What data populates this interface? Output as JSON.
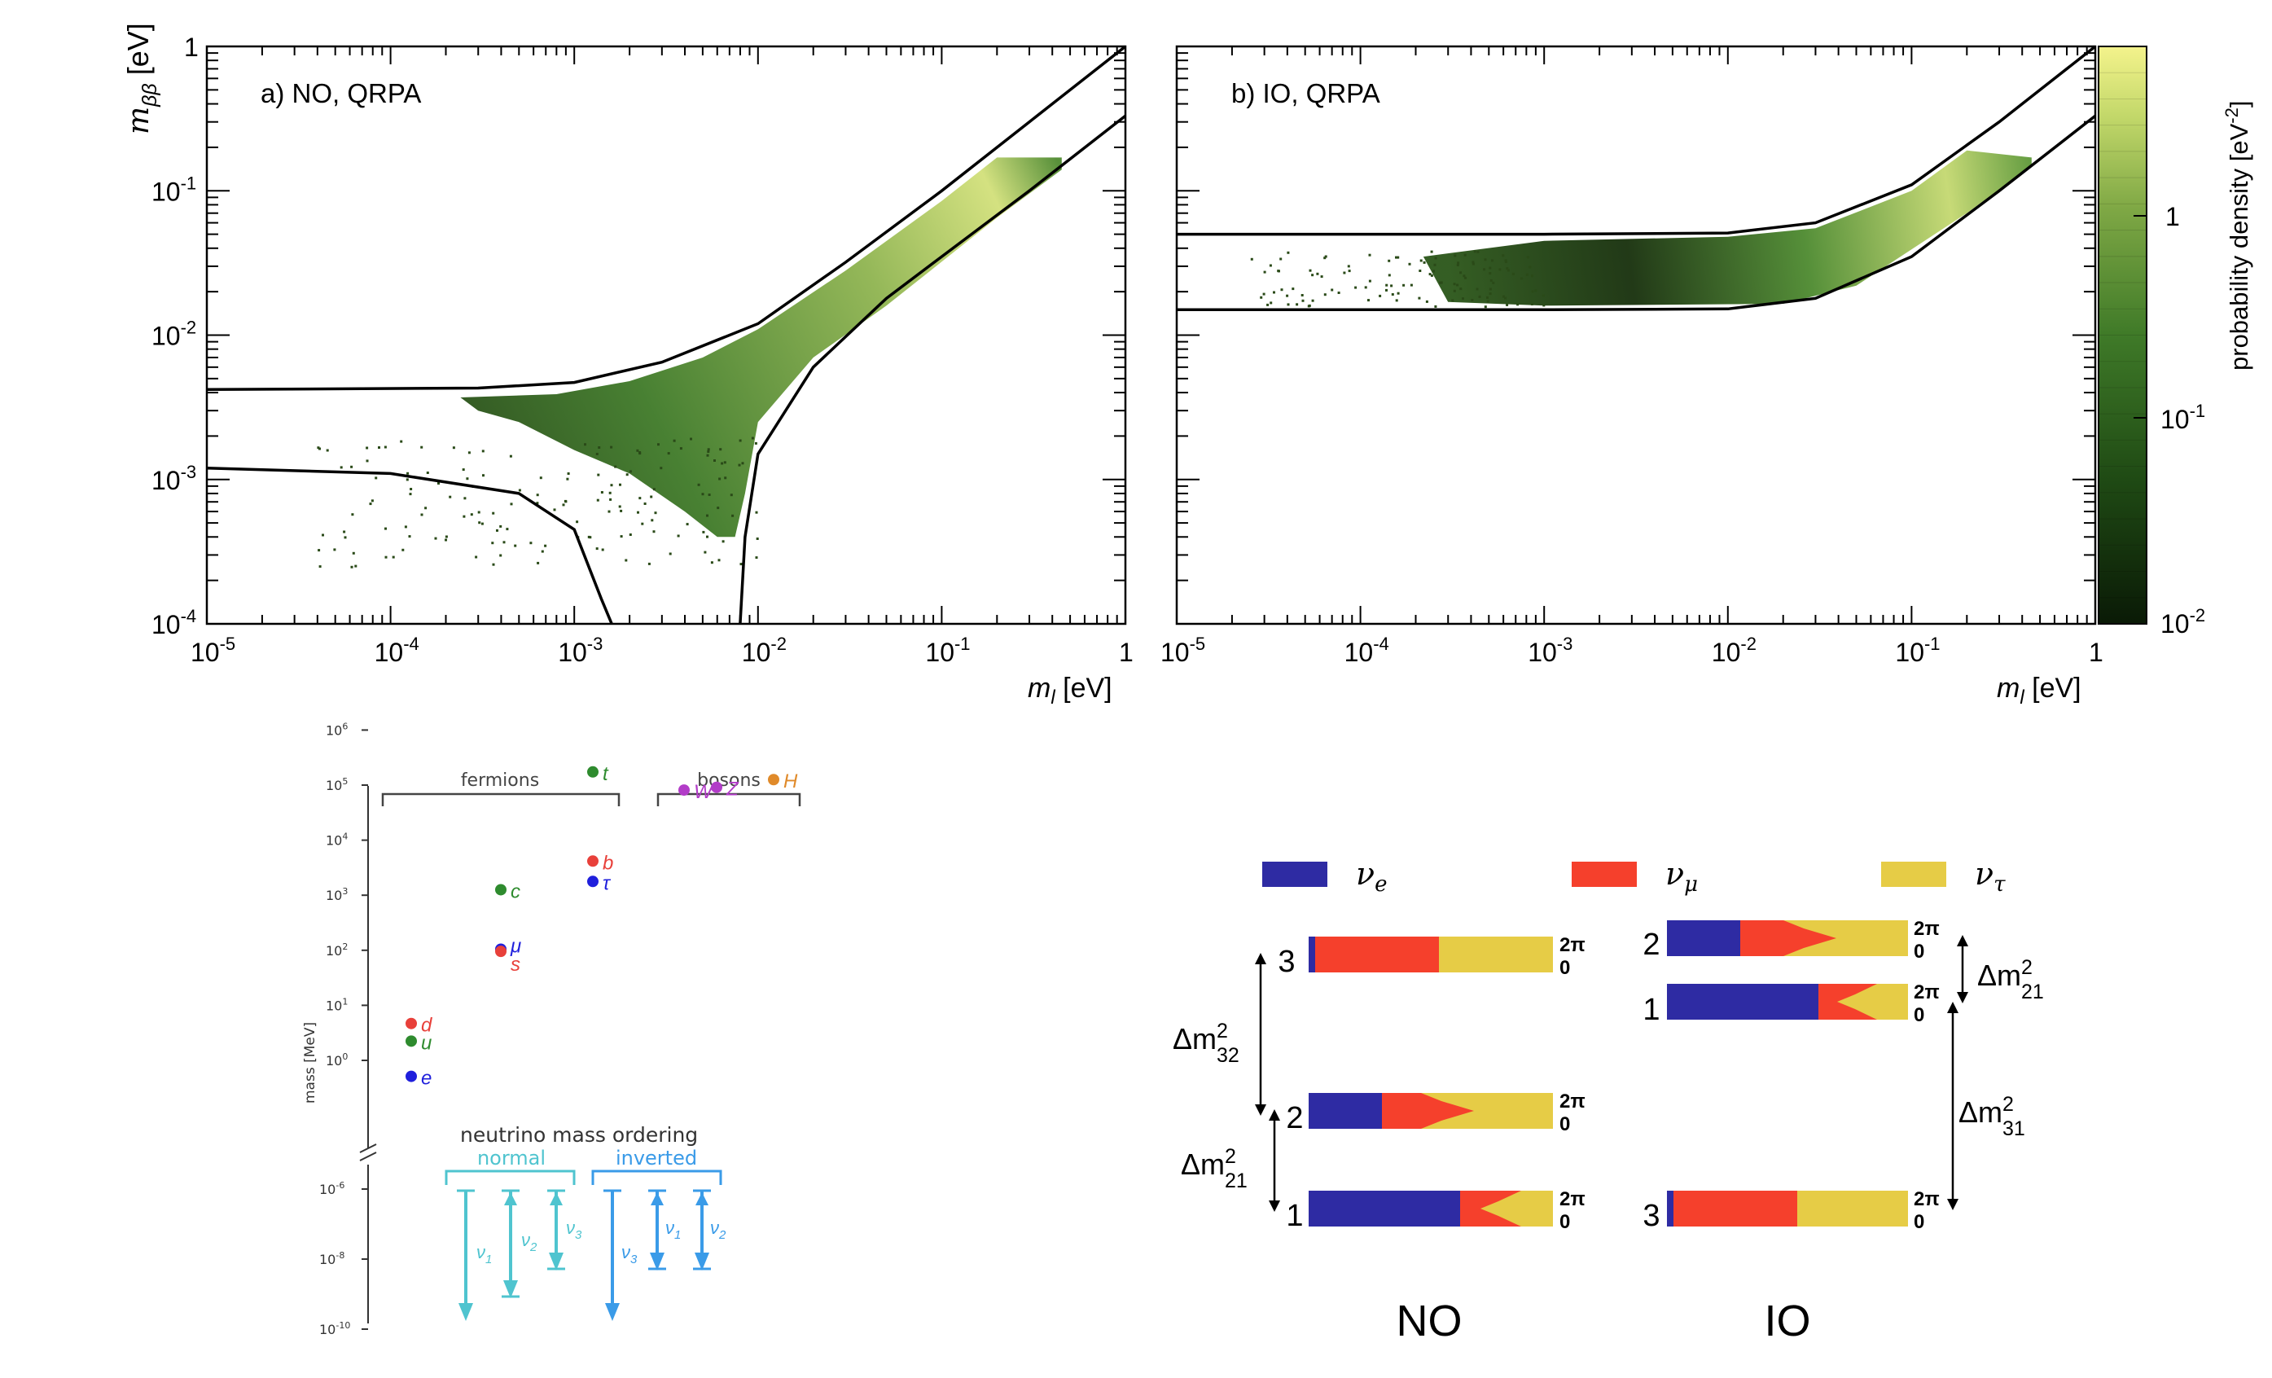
{
  "panel_a": {
    "label": "a) NO, QRPA",
    "ylabel": "m",
    "ylabel_sub": "ββ",
    "ylabel_unit": " [eV]",
    "xlabel": "m",
    "xlabel_sub": "l",
    "xlabel_unit": " [eV]"
  },
  "panel_b": {
    "label": "b) IO, QRPA",
    "xlabel": "m",
    "xlabel_sub": "l",
    "xlabel_unit": " [eV]"
  },
  "colorbar": {
    "label": "probability density [eV",
    "label_sup": "-2",
    "label_end": "]",
    "ticks": [
      "1",
      "10",
      "10"
    ],
    "tick_sups": [
      "",
      "-1",
      "-2"
    ]
  },
  "ticks": {
    "y": [
      {
        "base": "1",
        "sup": ""
      },
      {
        "base": "10",
        "sup": "-1"
      },
      {
        "base": "10",
        "sup": "-2"
      },
      {
        "base": "10",
        "sup": "-3"
      },
      {
        "base": "10",
        "sup": "-4"
      }
    ],
    "x_a": [
      {
        "base": "10",
        "sup": "-5"
      },
      {
        "base": "10",
        "sup": "-4"
      },
      {
        "base": "10",
        "sup": "-3"
      },
      {
        "base": "10",
        "sup": "-2"
      },
      {
        "base": "10",
        "sup": "-1"
      },
      {
        "base": "1",
        "sup": ""
      }
    ],
    "x_b": [
      {
        "base": "10",
        "sup": "-5"
      },
      {
        "base": "10",
        "sup": "-4"
      },
      {
        "base": "10",
        "sup": "-3"
      },
      {
        "base": "10",
        "sup": "-2"
      },
      {
        "base": "10",
        "sup": "-1"
      },
      {
        "base": "1",
        "sup": ""
      }
    ]
  },
  "chart_data": [
    {
      "type": "heatmap",
      "title": "a) NO, QRPA",
      "xlabel": "m_l [eV]",
      "ylabel": "m_ββ [eV]",
      "x_scale": "log",
      "y_scale": "log",
      "xlim": [
        1e-05,
        1
      ],
      "ylim": [
        0.0001,
        1
      ],
      "band_upper": {
        "x": [
          1e-05,
          0.0003,
          0.001,
          0.003,
          0.01,
          0.03,
          0.1,
          0.3,
          1
        ],
        "y": [
          0.0042,
          0.0043,
          0.0047,
          0.0065,
          0.012,
          0.032,
          0.1,
          0.3,
          1.0
        ]
      },
      "band_lower": {
        "x": [
          1e-05,
          0.0001,
          0.0005,
          0.001,
          0.0014,
          0.0016
        ],
        "y": [
          0.0012,
          0.0011,
          0.0008,
          0.00045,
          0.00015,
          0.0001
        ]
      },
      "band_lower_right": {
        "x": [
          0.008,
          0.0085,
          0.01,
          0.02,
          0.05,
          0.1,
          0.3,
          1
        ],
        "y": [
          0.0001,
          0.0004,
          0.0015,
          0.006,
          0.018,
          0.035,
          0.1,
          0.33
        ]
      }
    },
    {
      "type": "heatmap",
      "title": "b) IO, QRPA",
      "xlabel": "m_l [eV]",
      "x_scale": "log",
      "y_scale": "log",
      "xlim": [
        1e-05,
        1
      ],
      "ylim": [
        0.0001,
        1
      ],
      "band_upper": {
        "x": [
          1e-05,
          0.001,
          0.01,
          0.03,
          0.1,
          0.3,
          1
        ],
        "y": [
          0.05,
          0.05,
          0.051,
          0.06,
          0.11,
          0.3,
          1.0
        ]
      },
      "band_lower": {
        "x": [
          1e-05,
          0.001,
          0.01,
          0.03,
          0.1,
          0.3,
          1
        ],
        "y": [
          0.015,
          0.015,
          0.0152,
          0.018,
          0.035,
          0.1,
          0.33
        ]
      }
    }
  ],
  "mass_chart": {
    "ylabel": "mass [MeV]",
    "ytick_base": "10",
    "yticks_upper": [
      "6",
      "5",
      "4",
      "3",
      "2",
      "1",
      "0"
    ],
    "yticks_lower": [
      "-6",
      "-8",
      "-10"
    ],
    "group_fermions": "fermions",
    "group_bosons": "bosons",
    "ordering_title": "neutrino mass ordering",
    "normal": "normal",
    "inverted": "inverted",
    "particles": [
      {
        "name": "t",
        "log_mass": 5.24,
        "color": "#2e8b2e"
      },
      {
        "name": "b",
        "log_mass": 3.62,
        "color": "#e8403a"
      },
      {
        "name": "τ",
        "log_mass": 3.25,
        "color": "#1f1fdc"
      },
      {
        "name": "c",
        "log_mass": 3.1,
        "color": "#2e8b2e"
      },
      {
        "name": "μ",
        "log_mass": 2.02,
        "color": "#1f1fdc"
      },
      {
        "name": "s",
        "log_mass": 1.98,
        "color": "#e8403a"
      },
      {
        "name": "d",
        "log_mass": 0.67,
        "color": "#e8403a"
      },
      {
        "name": "u",
        "log_mass": 0.35,
        "color": "#2e8b2e"
      },
      {
        "name": "e",
        "log_mass": -0.29,
        "color": "#1f1fdc"
      },
      {
        "name": "W",
        "log_mass": 4.91,
        "color": "#b23cc8"
      },
      {
        "name": "Z",
        "log_mass": 4.96,
        "color": "#b23cc8"
      },
      {
        "name": "H",
        "log_mass": 5.1,
        "color": "#e08a2a"
      }
    ],
    "nu_labels": [
      "ν",
      "ν",
      "ν",
      "ν",
      "ν",
      "ν"
    ],
    "nu_subs": [
      "1",
      "2",
      "3",
      "3",
      "1",
      "2"
    ]
  },
  "ordering": {
    "legend": [
      {
        "sym": "ν",
        "sub": "e",
        "color": "#2e2ba3"
      },
      {
        "sym": "ν",
        "sub": "μ",
        "color": "#f5402c"
      },
      {
        "sym": "ν",
        "sub": "τ",
        "color": "#e6cc46"
      }
    ],
    "phase_top": "2π",
    "phase_bottom": "0",
    "no_label": "NO",
    "io_label": "IO",
    "no_levels": [
      "3",
      "2",
      "1"
    ],
    "io_levels": [
      "2",
      "1",
      "3"
    ],
    "dm32": {
      "base": "Δm",
      "sup": "2",
      "sub": "32"
    },
    "dm21_no": {
      "base": "Δm",
      "sup": "2",
      "sub": "21"
    },
    "dm21_io": {
      "base": "Δm",
      "sup": "2",
      "sub": "21"
    },
    "dm31": {
      "base": "Δm",
      "sup": "2",
      "sub": "31"
    }
  }
}
